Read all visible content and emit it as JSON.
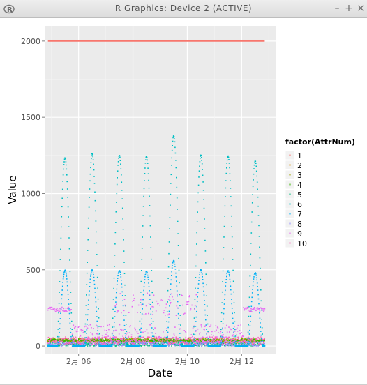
{
  "window": {
    "title": "R Graphics: Device 2 (ACTIVE)",
    "minimize": "–",
    "maximize": "+",
    "close": "×"
  },
  "chart_data": {
    "type": "scatter",
    "title": "",
    "xlabel": "Date",
    "ylabel": "Value",
    "ylim": [
      -50,
      2100
    ],
    "xlim": [
      "2月 04 18:00",
      "2月 13 06:00"
    ],
    "x_ticks": [
      "2月 06",
      "2月 08",
      "2月 10",
      "2月 12"
    ],
    "y_ticks": [
      0,
      500,
      1000,
      1500,
      2000
    ],
    "grid": true,
    "legend": {
      "title": "factor(AttrNum)",
      "position": "right",
      "entries": [
        "1",
        "2",
        "3",
        "4",
        "5",
        "6",
        "7",
        "8",
        "9",
        "10"
      ]
    },
    "series_colors": [
      "#F8766D",
      "#D89000",
      "#A3A500",
      "#39B600",
      "#00BF7D",
      "#00BFC4",
      "#00B0F6",
      "#9590FF",
      "#E76BF3",
      "#FF62BC"
    ],
    "panel_background": "#EBEBEB",
    "series": [
      {
        "name": "1",
        "description": "constant",
        "value": 2000
      },
      {
        "name": "2",
        "range": [
          20,
          40
        ]
      },
      {
        "name": "3",
        "range": [
          30,
          50
        ]
      },
      {
        "name": "4",
        "range": [
          25,
          45
        ]
      },
      {
        "name": "5",
        "range": [
          0,
          20
        ]
      },
      {
        "name": "6",
        "daily_peaks": [
          1235,
          1260,
          1250,
          1245,
          1380,
          1250,
          1245,
          1215
        ]
      },
      {
        "name": "7",
        "daily_peaks": [
          495,
          500,
          495,
          490,
          560,
          500,
          495,
          480
        ]
      },
      {
        "name": "8",
        "range": [
          0,
          30
        ]
      },
      {
        "name": "9",
        "range": [
          0,
          360
        ]
      },
      {
        "name": "10",
        "range": [
          10,
          60
        ]
      }
    ]
  }
}
